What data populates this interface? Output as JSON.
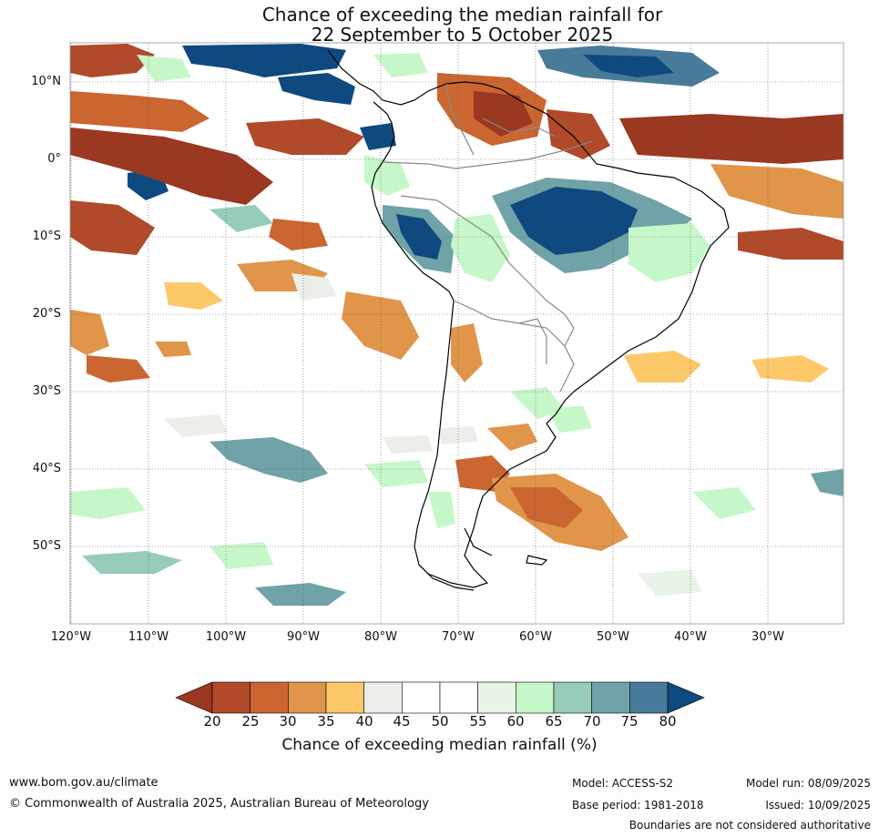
{
  "title": {
    "line1": "Chance of exceeding the median rainfall for",
    "line2": "22 September to 5 October 2025"
  },
  "map": {
    "lat_labels": [
      "10°N",
      "0°",
      "10°S",
      "20°S",
      "30°S",
      "40°S",
      "50°S"
    ],
    "lon_labels": [
      "120°W",
      "110°W",
      "100°W",
      "90°W",
      "80°W",
      "70°W",
      "60°W",
      "50°W",
      "40°W",
      "30°W"
    ]
  },
  "colorbar": {
    "ticks": [
      "20",
      "25",
      "30",
      "35",
      "40",
      "45",
      "50",
      "55",
      "60",
      "65",
      "70",
      "75",
      "80"
    ],
    "colors": [
      "#9b3821",
      "#b14a2a",
      "#cb6631",
      "#e0954b",
      "#fcc86a",
      "#ededea",
      "#ffffff",
      "#ffffff",
      "#e8f4e8",
      "#c6f7c9",
      "#97ccb8",
      "#6fa3a7",
      "#477b99",
      "#0e4a7f"
    ],
    "label": "Chance of exceeding median rainfall (%)"
  },
  "footer": {
    "website": "www.bom.gov.au/climate",
    "copyright": "© Commonwealth of Australia 2025, Australian Bureau of Meteorology",
    "model": "Model: ACCESS-S2",
    "base_period": "Base period: 1981-2018",
    "model_run": "Model run: 08/09/2025",
    "issued": "Issued: 10/09/2025",
    "disclaimer": "Boundaries are not considered authoritative"
  }
}
